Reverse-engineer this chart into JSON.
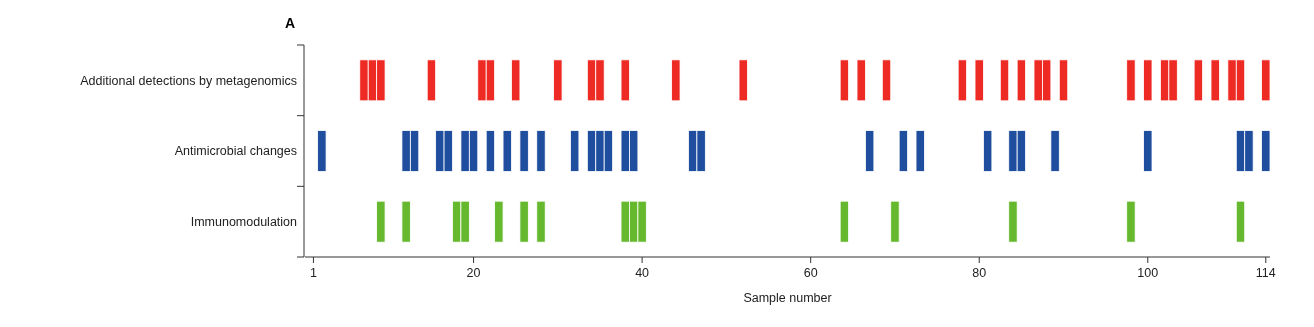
{
  "chart_data": {
    "type": "bar",
    "title": "A",
    "xlabel": "Sample number",
    "orientation": "horizontal",
    "categories": [
      "Additional detections by metagenomics",
      "Antimicrobial changes",
      "Immunomodulation"
    ],
    "xlim": [
      0,
      114.5
    ],
    "xticks": [
      1,
      20,
      40,
      60,
      80,
      100,
      114
    ],
    "series": [
      {
        "colors": [
          "#ee2a24",
          "#1f4e9e",
          "#66b92e"
        ],
        "base": [
          6.5,
          1.5,
          8.5
        ],
        "values": [
          1,
          1,
          1
        ]
      },
      {
        "colors": [
          "#ee2a24",
          "#1f4e9e",
          "#66b92e"
        ],
        "base": [
          7.5,
          11.5,
          11.5
        ],
        "values": [
          1,
          1,
          1
        ]
      },
      {
        "colors": [
          "#ee2a24",
          "#1f4e9e",
          "#66b92e"
        ],
        "base": [
          8.5,
          12.5,
          17.5
        ],
        "values": [
          1,
          1,
          1
        ]
      },
      {
        "colors": [
          "#ee2a24",
          "#1f4e9e",
          "#66b92e"
        ],
        "base": [
          14.5,
          15.5,
          18.5
        ],
        "values": [
          1,
          1,
          1
        ]
      },
      {
        "colors": [
          "#ee2a24",
          "#1f4e9e",
          "#66b92e"
        ],
        "base": [
          20.5,
          16.5,
          22.5
        ],
        "values": [
          1,
          1,
          1
        ]
      },
      {
        "colors": [
          "#ee2a24",
          "#1f4e9e",
          "#66b92e"
        ],
        "base": [
          21.5,
          18.5,
          25.5
        ],
        "values": [
          1,
          1,
          1
        ]
      },
      {
        "colors": [
          "#ee2a24",
          "#1f4e9e",
          "#66b92e"
        ],
        "base": [
          24.5,
          19.5,
          27.5
        ],
        "values": [
          1,
          1,
          1
        ]
      },
      {
        "colors": [
          "#ee2a24",
          "#1f4e9e",
          "#66b92e"
        ],
        "base": [
          29.5,
          21.5,
          37.5
        ],
        "values": [
          1,
          1,
          1
        ]
      },
      {
        "colors": [
          "#ee2a24",
          "#1f4e9e",
          "#66b92e"
        ],
        "base": [
          33.5,
          23.5,
          38.5
        ],
        "values": [
          1,
          1,
          1
        ]
      },
      {
        "colors": [
          "#ee2a24",
          "#1f4e9e",
          "#66b92e"
        ],
        "base": [
          34.5,
          25.5,
          39.5
        ],
        "values": [
          1,
          1,
          1
        ]
      },
      {
        "colors": [
          "#ee2a24",
          "#1f4e9e",
          "#66b92e"
        ],
        "base": [
          37.5,
          27.5,
          63.5
        ],
        "values": [
          1,
          1,
          1
        ]
      },
      {
        "colors": [
          "#ee2a24",
          "#1f4e9e",
          "#66b92e"
        ],
        "base": [
          43.5,
          31.5,
          69.5
        ],
        "values": [
          1,
          1,
          1
        ]
      },
      {
        "colors": [
          "#ee2a24",
          "#1f4e9e",
          "#66b92e"
        ],
        "base": [
          51.5,
          33.5,
          83.5
        ],
        "values": [
          1,
          1,
          1
        ]
      },
      {
        "colors": [
          "#ee2a24",
          "#1f4e9e",
          "#66b92e"
        ],
        "base": [
          63.5,
          34.5,
          97.5
        ],
        "values": [
          1,
          1,
          1
        ]
      },
      {
        "colors": [
          "#ee2a24",
          "#1f4e9e",
          "#66b92e"
        ],
        "base": [
          65.5,
          35.5,
          110.5
        ],
        "values": [
          1,
          1,
          1
        ]
      },
      {
        "colors": [
          "#ee2a24",
          "#1f4e9e",
          null
        ],
        "base": [
          68.5,
          37.5,
          null
        ],
        "values": [
          1,
          1,
          null
        ]
      },
      {
        "colors": [
          "#ee2a24",
          "#1f4e9e",
          null
        ],
        "base": [
          77.5,
          38.5,
          null
        ],
        "values": [
          1,
          1,
          null
        ]
      },
      {
        "colors": [
          "#ee2a24",
          "#1f4e9e",
          null
        ],
        "base": [
          79.5,
          45.5,
          null
        ],
        "values": [
          1,
          1,
          null
        ]
      },
      {
        "colors": [
          "#ee2a24",
          "#1f4e9e",
          null
        ],
        "base": [
          82.5,
          46.5,
          null
        ],
        "values": [
          1,
          1,
          null
        ]
      },
      {
        "colors": [
          "#ee2a24",
          "#1f4e9e",
          null
        ],
        "base": [
          84.5,
          66.5,
          null
        ],
        "values": [
          1,
          1,
          null
        ]
      },
      {
        "colors": [
          "#ee2a24",
          "#1f4e9e",
          null
        ],
        "base": [
          86.5,
          70.5,
          null
        ],
        "values": [
          1,
          1,
          null
        ]
      },
      {
        "colors": [
          "#ee2a24",
          "#1f4e9e",
          null
        ],
        "base": [
          87.5,
          72.5,
          null
        ],
        "values": [
          1,
          1,
          null
        ]
      },
      {
        "colors": [
          "#ee2a24",
          "#1f4e9e",
          null
        ],
        "base": [
          89.5,
          80.5,
          null
        ],
        "values": [
          1,
          1,
          null
        ]
      },
      {
        "colors": [
          "#ee2a24",
          "#1f4e9e",
          null
        ],
        "base": [
          97.5,
          83.5,
          null
        ],
        "values": [
          1,
          1,
          null
        ]
      },
      {
        "colors": [
          "#ee2a24",
          "#1f4e9e",
          null
        ],
        "base": [
          99.5,
          84.5,
          null
        ],
        "values": [
          1,
          1,
          null
        ]
      },
      {
        "colors": [
          "#ee2a24",
          "#1f4e9e",
          null
        ],
        "base": [
          101.5,
          88.5,
          null
        ],
        "values": [
          1,
          1,
          null
        ]
      },
      {
        "colors": [
          "#ee2a24",
          "#1f4e9e",
          null
        ],
        "base": [
          102.5,
          99.5,
          null
        ],
        "values": [
          1,
          1,
          null
        ]
      },
      {
        "colors": [
          "#ee2a24",
          "#1f4e9e",
          null
        ],
        "base": [
          105.5,
          110.5,
          null
        ],
        "values": [
          1,
          1,
          null
        ]
      },
      {
        "colors": [
          "#ee2a24",
          "#1f4e9e",
          null
        ],
        "base": [
          107.5,
          111.5,
          null
        ],
        "values": [
          1,
          1,
          null
        ]
      },
      {
        "colors": [
          "#ee2a24",
          "#1f4e9e",
          null
        ],
        "base": [
          109.5,
          113.5,
          null
        ],
        "values": [
          1,
          1,
          null
        ]
      },
      {
        "colors": [
          "#ee2a24",
          null,
          null
        ],
        "base": [
          110.5,
          null,
          null
        ],
        "values": [
          1,
          null,
          null
        ]
      },
      {
        "colors": [
          "#ee2a24",
          null,
          null
        ],
        "base": [
          113.5,
          null,
          null
        ],
        "values": [
          1,
          null,
          null
        ]
      }
    ]
  }
}
